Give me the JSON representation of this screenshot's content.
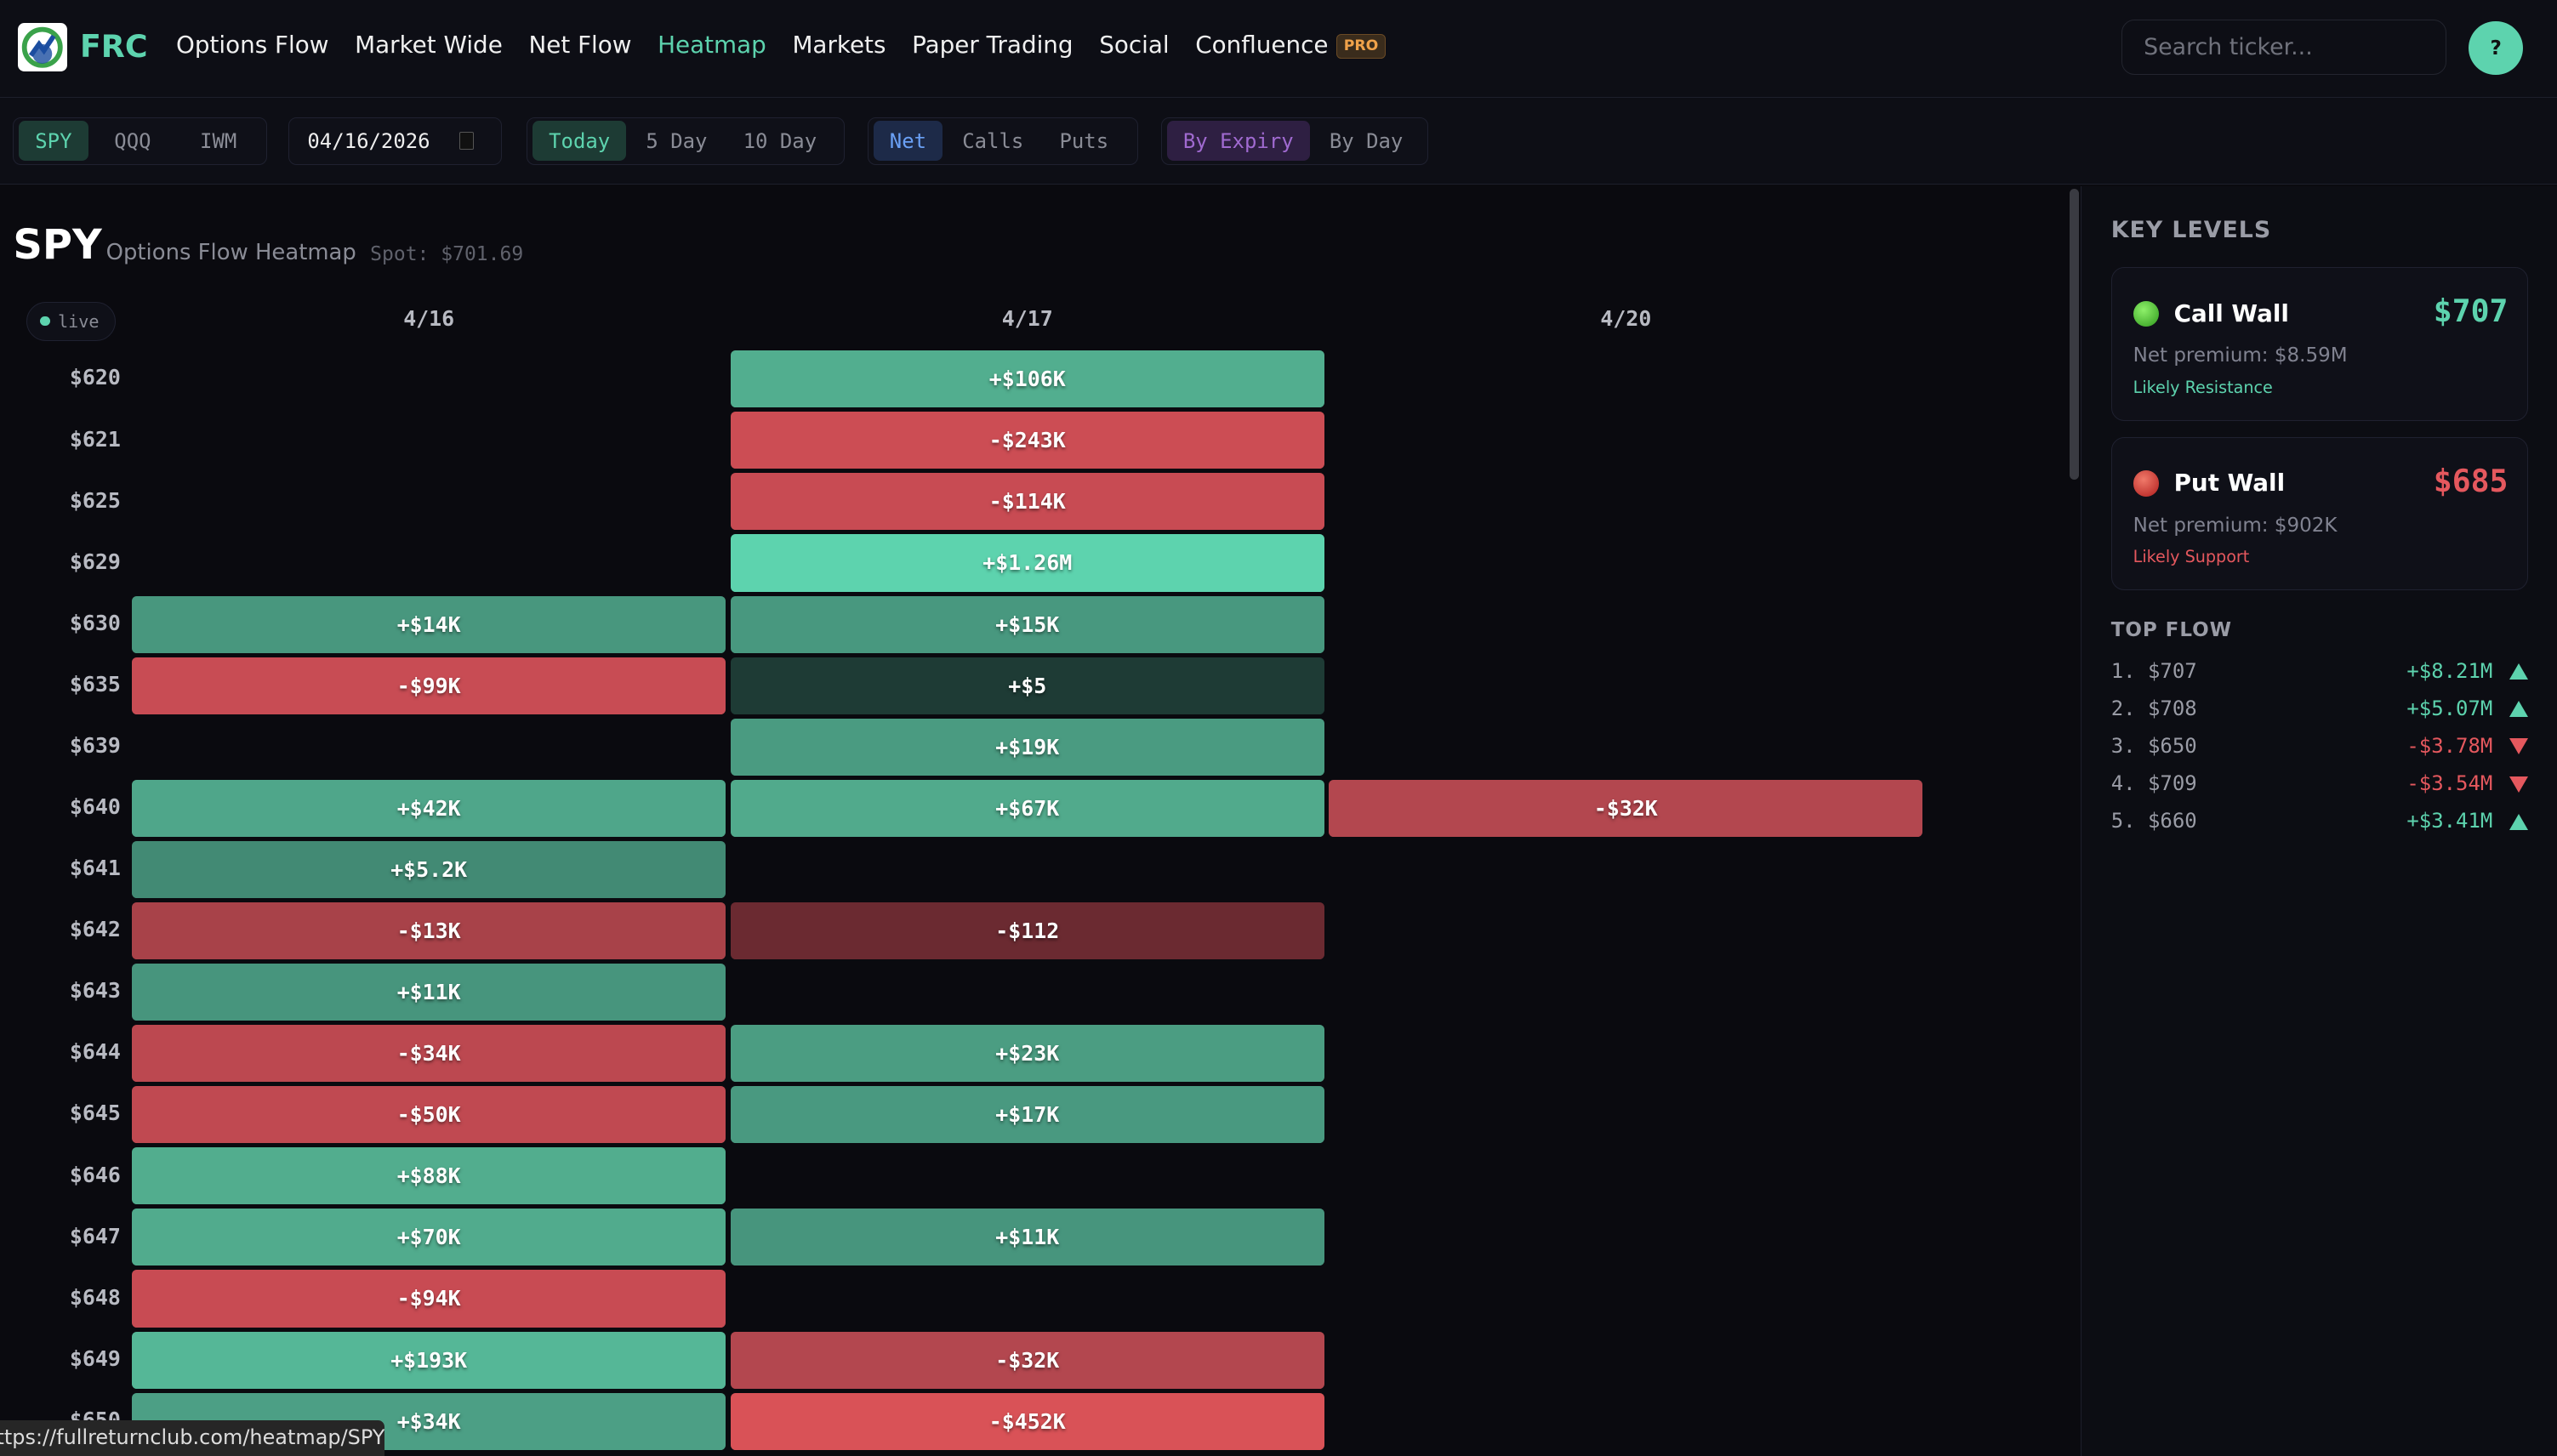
{
  "nav": {
    "brand": "FRC",
    "items": [
      "Options Flow",
      "Market Wide",
      "Net Flow",
      "Heatmap",
      "Markets",
      "Paper Trading",
      "Social",
      "Confluence"
    ],
    "active": "Heatmap",
    "pro_badge": "PRO",
    "search_placeholder": "Search ticker...",
    "help_label": "?"
  },
  "toolbar": {
    "tickers": [
      "SPY",
      "QQQ",
      "IWM"
    ],
    "ticker_selected": "SPY",
    "date": "04/16/2026",
    "ranges": [
      "Today",
      "5 Day",
      "10 Day"
    ],
    "range_selected": "Today",
    "types": [
      "Net",
      "Calls",
      "Puts"
    ],
    "type_selected": "Net",
    "views": [
      "By Expiry",
      "By Day"
    ],
    "view_selected": "By Expiry"
  },
  "header": {
    "ticker": "SPY",
    "subtitle": "Options Flow Heatmap",
    "spot": "Spot: $701.69",
    "live": "live"
  },
  "colors": {
    "accent": "#5dd3ae",
    "negative": "#e5585e"
  },
  "chart_data": {
    "type": "heatmap",
    "columns": [
      "4/16",
      "4/17",
      "4/20"
    ],
    "rows": [
      {
        "strike": "$620",
        "cells": [
          null,
          {
            "v": "+$106K",
            "c": "#52ae8f"
          },
          null
        ]
      },
      {
        "strike": "$621",
        "cells": [
          null,
          {
            "v": "-$243K",
            "c": "#cc4d54"
          },
          null
        ]
      },
      {
        "strike": "$625",
        "cells": [
          null,
          {
            "v": "-$114K",
            "c": "#c84b53"
          },
          null
        ]
      },
      {
        "strike": "$629",
        "cells": [
          null,
          {
            "v": "+$1.26M",
            "c": "#5dd3ae"
          },
          null
        ]
      },
      {
        "strike": "$630",
        "cells": [
          {
            "v": "+$14K",
            "c": "#48977e"
          },
          {
            "v": "+$15K",
            "c": "#48987f"
          },
          null
        ]
      },
      {
        "strike": "$635",
        "cells": [
          {
            "v": "-$99K",
            "c": "#c84c54"
          },
          {
            "v": "+$5",
            "c": "#1e3b35"
          },
          null
        ]
      },
      {
        "strike": "$639",
        "cells": [
          null,
          {
            "v": "+$19K",
            "c": "#4a9b81"
          },
          null
        ]
      },
      {
        "strike": "$640",
        "cells": [
          {
            "v": "+$42K",
            "c": "#4fa68a"
          },
          {
            "v": "+$67K",
            "c": "#51aa8c"
          },
          {
            "v": "-$32K",
            "c": "#b3474f"
          }
        ]
      },
      {
        "strike": "$641",
        "cells": [
          {
            "v": "+$5.2K",
            "c": "#428a74"
          },
          null,
          null
        ]
      },
      {
        "strike": "$642",
        "cells": [
          {
            "v": "-$13K",
            "c": "#a84249"
          },
          {
            "v": "-$112",
            "c": "#6b2a31"
          },
          null
        ]
      },
      {
        "strike": "$643",
        "cells": [
          {
            "v": "+$11K",
            "c": "#47957d"
          },
          null,
          null
        ]
      },
      {
        "strike": "$644",
        "cells": [
          {
            "v": "-$34K",
            "c": "#bc4850"
          },
          {
            "v": "+$23K",
            "c": "#4b9d82"
          },
          null
        ]
      },
      {
        "strike": "$645",
        "cells": [
          {
            "v": "-$50K",
            "c": "#c04951"
          },
          {
            "v": "+$17K",
            "c": "#499980"
          },
          null
        ]
      },
      {
        "strike": "$646",
        "cells": [
          {
            "v": "+$88K",
            "c": "#52ad8e"
          },
          null,
          null
        ]
      },
      {
        "strike": "$647",
        "cells": [
          {
            "v": "+$70K",
            "c": "#51ab8d"
          },
          {
            "v": "+$11K",
            "c": "#47957d"
          },
          null
        ]
      },
      {
        "strike": "$648",
        "cells": [
          {
            "v": "-$94K",
            "c": "#c84b53"
          },
          null,
          null
        ]
      },
      {
        "strike": "$649",
        "cells": [
          {
            "v": "+$193K",
            "c": "#55b797"
          },
          {
            "v": "-$32K",
            "c": "#b3474f"
          },
          null
        ]
      },
      {
        "strike": "$650",
        "cells": [
          {
            "v": "+$34K",
            "c": "#4c9f85"
          },
          {
            "v": "-$452K",
            "c": "#d95257"
          },
          null
        ]
      }
    ]
  },
  "status_url": "https://fullreturnclub.com/heatmap/SPY",
  "sidebar": {
    "key_levels_title": "KEY LEVELS",
    "call_wall": {
      "label": "Call Wall",
      "value": "$707",
      "premium": "Net premium: $8.59M",
      "hint": "Likely Resistance"
    },
    "put_wall": {
      "label": "Put Wall",
      "value": "$685",
      "premium": "Net premium: $902K",
      "hint": "Likely Support"
    },
    "top_flow_title": "TOP FLOW",
    "top_flow": [
      {
        "rank": "1.",
        "strike": "$707",
        "value": "+$8.21M",
        "dir": "up"
      },
      {
        "rank": "2.",
        "strike": "$708",
        "value": "+$5.07M",
        "dir": "up"
      },
      {
        "rank": "3.",
        "strike": "$650",
        "value": "-$3.78M",
        "dir": "down"
      },
      {
        "rank": "4.",
        "strike": "$709",
        "value": "-$3.54M",
        "dir": "down"
      },
      {
        "rank": "5.",
        "strike": "$660",
        "value": "+$3.41M",
        "dir": "up"
      }
    ]
  }
}
